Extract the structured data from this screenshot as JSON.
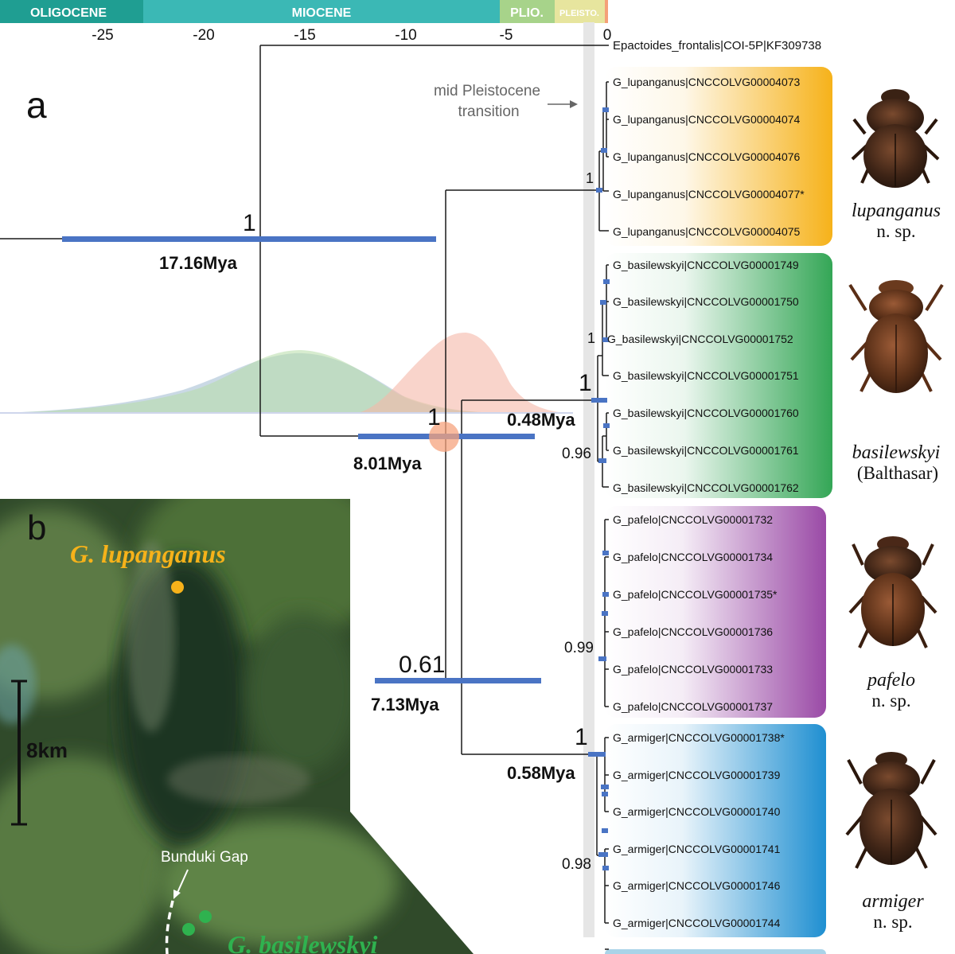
{
  "epochs": [
    {
      "name": "OLIGOCENE",
      "color": "#1f9e92"
    },
    {
      "name": "MIOCENE",
      "color": "#3bb8b5"
    },
    {
      "name": "PLIO.",
      "color": "#a7d38a"
    },
    {
      "name": "PLEISTO.",
      "color": "#e7e59e"
    }
  ],
  "time_ticks": [
    "-25",
    "-20",
    "-15",
    "-10",
    "-5",
    "0"
  ],
  "panel_labels": {
    "a": "a",
    "b": "b"
  },
  "annotation": {
    "line1": "mid Pleistocene",
    "line2": "transition"
  },
  "outgroup": "Epactoides_frontalis|COI-5P|KF309738",
  "clades": [
    {
      "id": "lupanganus",
      "color": "#f6b21a",
      "tips": [
        "G_lupanganus|CNCCOLVG00004073",
        "G_lupanganus|CNCCOLVG00004074",
        "G_lupanganus|CNCCOLVG00004076",
        "G_lupanganus|CNCCOLVG00004077*",
        "G_lupanganus|CNCCOLVG00004075"
      ],
      "species": "lupanganus",
      "author": "n. sp."
    },
    {
      "id": "basilewskyi",
      "color": "#34a656",
      "tips": [
        "G_basilewskyi|CNCCOLVG00001749",
        "G_basilewskyi|CNCCOLVG00001750",
        "G_basilewskyi|CNCCOLVG00001752",
        "G_basilewskyi|CNCCOLVG00001751",
        "G_basilewskyi|CNCCOLVG00001760",
        "G_basilewskyi|CNCCOLVG00001761",
        "G_basilewskyi|CNCCOLVG00001762"
      ],
      "species": "basilewskyi",
      "author": "(Balthasar)"
    },
    {
      "id": "pafelo",
      "color": "#9a4aa6",
      "tips": [
        "G_pafelo|CNCCOLVG00001732",
        "G_pafelo|CNCCOLVG00001734",
        "G_pafelo|CNCCOLVG00001735*",
        "G_pafelo|CNCCOLVG00001736",
        "G_pafelo|CNCCOLVG00001733",
        "G_pafelo|CNCCOLVG00001737"
      ],
      "species": "pafelo",
      "author": "n. sp."
    },
    {
      "id": "armiger",
      "color": "#1f8fd1",
      "tips": [
        "G_armiger|CNCCOLVG00001738*",
        "G_armiger|CNCCOLVG00001739",
        "G_armiger|CNCCOLVG00001740",
        "G_armiger|CNCCOLVG00001741",
        "G_armiger|CNCCOLVG00001746",
        "G_armiger|CNCCOLVG00001744"
      ],
      "species": "armiger",
      "author": "n. sp."
    }
  ],
  "node_support": {
    "root": "1",
    "n2": "1",
    "n3": "0.61",
    "lup": "1",
    "bas": "1",
    "bas_sub": "1",
    "bas_low": "0.96",
    "paf": "0.99",
    "arm": "1",
    "arm_low": "0.98"
  },
  "node_ages": {
    "root": "17.16Mya",
    "n2": "8.01Mya",
    "n3": "7.13Mya",
    "bas": "0.48Mya",
    "arm": "0.58Mya"
  },
  "map": {
    "scale": "8km",
    "lupanganus_label": "G. lupanganus",
    "basilewskyi_label": "G. basilewskyi",
    "gap_label": "Bunduki Gap",
    "lupanganus_color": "#f6b21a",
    "basilewskyi_color": "#2fb24f"
  },
  "colors": {
    "branch": "#1a1a1a",
    "bar": "#4a74c4",
    "highlight": "#e8e8e8"
  }
}
